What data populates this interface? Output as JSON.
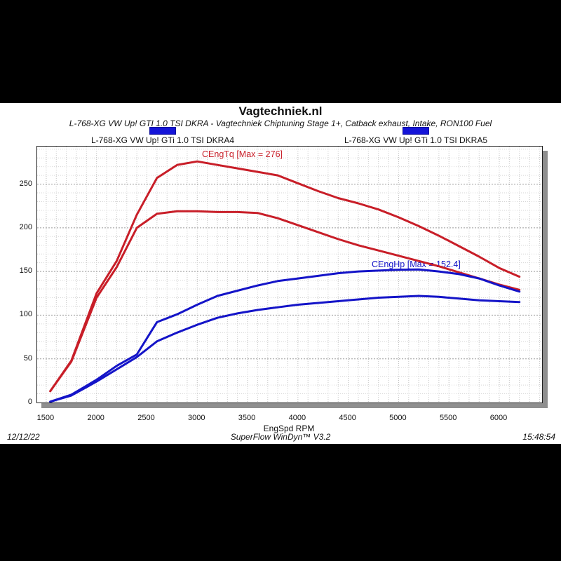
{
  "header": {
    "site_title": "Vagtechniek.nl",
    "subtitle": "L-768-XG VW Up! GTI 1.0 TSI DKRA - Vagtechniek Chiptuning Stage 1+, Catback exhaust, Intake, RON100 Fuel"
  },
  "legends": [
    {
      "label": "L-768-XG VW Up! GTi 1.0 TSI DKRA4",
      "bar_color": "#1414d8"
    },
    {
      "label": "L-768-XG VW Up! GTi 1.0 TSI DKRA5",
      "bar_color": "#1414d8"
    }
  ],
  "annotations": {
    "torque_label": "CEngTq [Max = 276]",
    "power_label": "CEngHp [Max = 152.4]"
  },
  "footer": {
    "date": "12/12/22",
    "software": "SuperFlow WinDyn™ V3.2",
    "time": "15:48:54"
  },
  "colors": {
    "torque": "#c81e28",
    "power": "#1414c8",
    "legend_bar": "#1414d8",
    "grid_minor_v": "#c9c9c9",
    "grid_minor_h": "#d6d6d6",
    "grid_major_h": "#9a9a9a",
    "shadow": "#8f8f8f"
  },
  "chart_data": {
    "type": "line",
    "xlabel": "EngSpd RPM",
    "ylabel": "",
    "xlim": [
      1410,
      6425
    ],
    "ylim": [
      0,
      293
    ],
    "x_ticks": [
      1500,
      2000,
      2500,
      3000,
      3500,
      4000,
      4500,
      5000,
      5500,
      6000
    ],
    "y_ticks": [
      0,
      50,
      100,
      150,
      200,
      250
    ],
    "grid": true,
    "legend_position": "top",
    "x_rpm": [
      1540,
      1750,
      2000,
      2200,
      2400,
      2600,
      2800,
      3000,
      3200,
      3400,
      3600,
      3800,
      4000,
      4200,
      4400,
      4600,
      4800,
      5000,
      5200,
      5400,
      5600,
      5800,
      6000,
      6200
    ],
    "series": [
      {
        "name": "CEngTq DKRA5 (tuned torque)",
        "color": "#c81e28",
        "max": 276,
        "values": [
          13,
          48,
          125,
          162,
          215,
          257,
          272,
          276,
          272,
          268,
          264,
          260,
          251,
          242,
          234,
          228,
          221,
          212,
          202,
          191,
          179,
          167,
          154,
          144
        ]
      },
      {
        "name": "CEngTq DKRA4 (baseline torque)",
        "color": "#c81e28",
        "max": 219,
        "values": [
          13,
          47,
          120,
          155,
          200,
          216,
          219,
          219,
          218,
          218,
          217,
          211,
          203,
          195,
          187,
          180,
          174,
          168,
          162,
          156,
          149,
          142,
          135,
          129
        ]
      },
      {
        "name": "CEngHp DKRA5 (tuned power)",
        "color": "#1414c8",
        "max": 152.4,
        "values": [
          1,
          9,
          26,
          42,
          55,
          92,
          101,
          112,
          122,
          128,
          134,
          139,
          142,
          145,
          148,
          150,
          151,
          152,
          152.4,
          150,
          147,
          142,
          134,
          127
        ]
      },
      {
        "name": "CEngHp DKRA4 (baseline power)",
        "color": "#1414c8",
        "max": 122,
        "values": [
          1,
          8,
          24,
          38,
          52,
          70,
          80,
          89,
          97,
          102,
          106,
          109,
          112,
          114,
          116,
          118,
          120,
          121,
          122,
          121,
          119,
          117,
          116,
          115
        ]
      }
    ]
  }
}
